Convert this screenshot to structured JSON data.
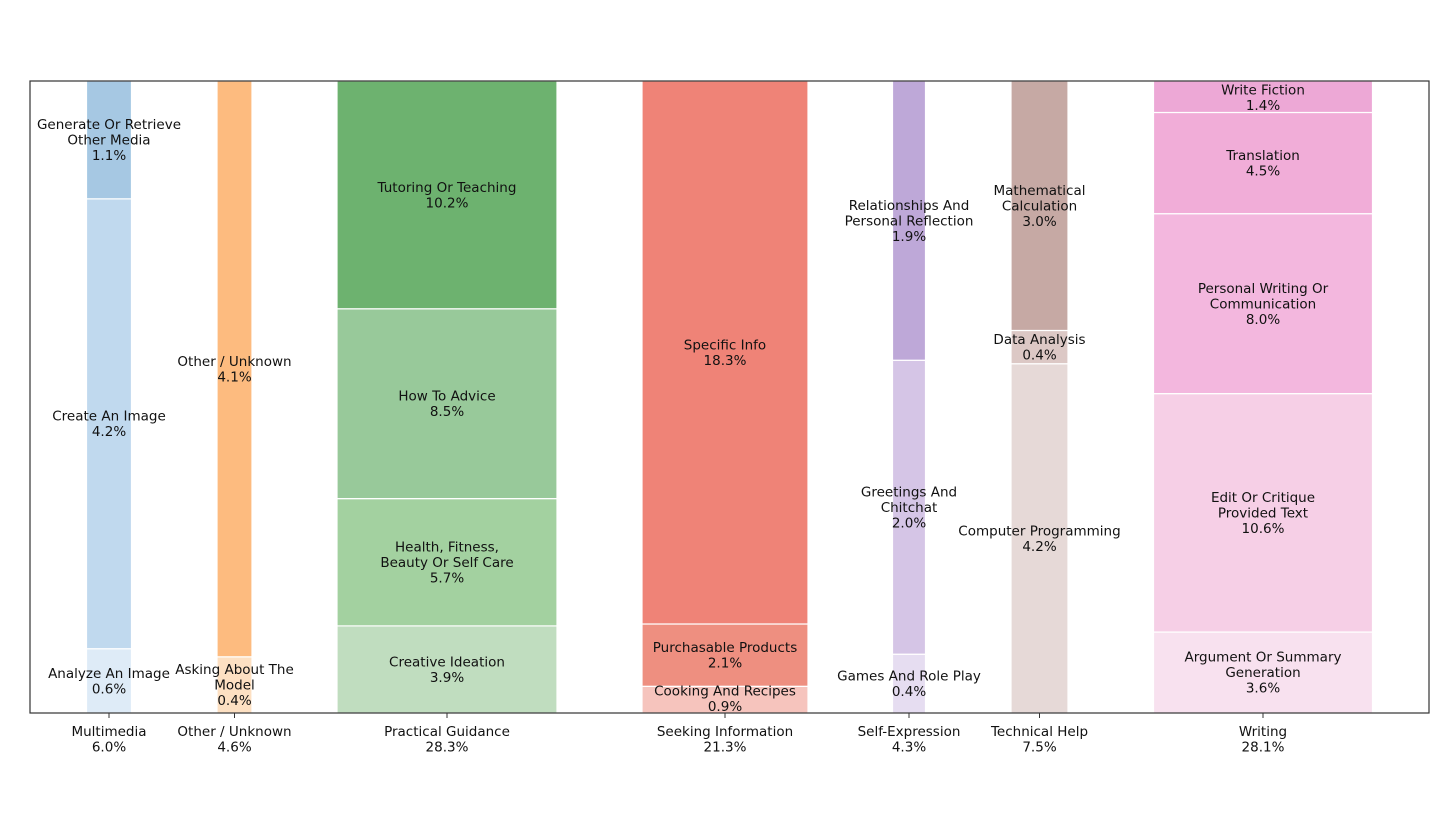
{
  "chart_data": {
    "type": "stacked_bar",
    "ylim": [
      0,
      1
    ],
    "grid": false,
    "legend": "none",
    "categories": [
      {
        "name": "Multimedia",
        "total": "6.0%",
        "color": "#9ecae1",
        "segments": [
          {
            "label": "Analyze An Image",
            "value": 0.6,
            "text": "0.6%",
            "color": "#deebf7"
          },
          {
            "label": "Create An Image",
            "value": 4.2,
            "text": "4.2%",
            "color": "#c0d9ee"
          },
          {
            "label": "Generate Or Retrieve Other Media",
            "value": 1.1,
            "text": "1.1%",
            "color": "#a6c8e3"
          }
        ]
      },
      {
        "name": "Other / Unknown",
        "total": "4.6%",
        "color": "#fdbb7f",
        "segments": [
          {
            "label": "Asking About The Model",
            "value": 0.4,
            "text": "0.4%",
            "color": "#fde0c2"
          },
          {
            "label": "Other / Unknown",
            "value": 4.1,
            "text": "4.1%",
            "color": "#fdbb7f"
          }
        ]
      },
      {
        "name": "Practical Guidance",
        "total": "28.3%",
        "color": "#74c476",
        "segments": [
          {
            "label": "Creative Ideation",
            "value": 3.9,
            "text": "3.9%",
            "color": "#c0ddbf"
          },
          {
            "label": "Health, Fitness, Beauty Or Self Care",
            "value": 5.7,
            "text": "5.7%",
            "color": "#a3d1a0"
          },
          {
            "label": "How To Advice",
            "value": 8.5,
            "text": "8.5%",
            "color": "#98c99a"
          },
          {
            "label": "Tutoring Or Teaching",
            "value": 10.2,
            "text": "10.2%",
            "color": "#6db26f"
          }
        ]
      },
      {
        "name": "Seeking Information",
        "total": "21.3%",
        "color": "#ef8377",
        "segments": [
          {
            "label": "Cooking And Recipes",
            "value": 0.9,
            "text": "0.9%",
            "color": "#f6c4bd"
          },
          {
            "label": "Purchasable Products",
            "value": 2.1,
            "text": "2.1%",
            "color": "#ee8f80"
          },
          {
            "label": "Specific Info",
            "value": 18.3,
            "text": "18.3%",
            "color": "#ef8377"
          }
        ]
      },
      {
        "name": "Self-Expression",
        "total": "4.3%",
        "color": "#bea8d8",
        "segments": [
          {
            "label": "Games And Role Play",
            "value": 0.4,
            "text": "0.4%",
            "color": "#e6ddf1"
          },
          {
            "label": "Greetings And Chitchat",
            "value": 2.0,
            "text": "2.0%",
            "color": "#d5c5e6"
          },
          {
            "label": "Relationships And Personal Reflection",
            "value": 1.9,
            "text": "1.9%",
            "color": "#bea8d8"
          }
        ]
      },
      {
        "name": "Technical Help",
        "total": "7.5%",
        "color": "#c6a9a4",
        "segments": [
          {
            "label": "Computer Programming",
            "value": 4.2,
            "text": "4.2%",
            "color": "#e6d9d7"
          },
          {
            "label": "Data Analysis",
            "value": 0.4,
            "text": "0.4%",
            "color": "#dcc8c5"
          },
          {
            "label": "Mathematical Calculation",
            "value": 3.0,
            "text": "3.0%",
            "color": "#c6a9a4"
          }
        ]
      },
      {
        "name": "Writing",
        "total": "28.1%",
        "color": "#f2a9d8",
        "segments": [
          {
            "label": "Argument Or Summary Generation",
            "value": 3.6,
            "text": "3.6%",
            "color": "#f8e1ef"
          },
          {
            "label": "Edit Or Critique Provided Text",
            "value": 10.6,
            "text": "10.6%",
            "color": "#f6cfe6"
          },
          {
            "label": "Personal Writing Or Communication",
            "value": 8.0,
            "text": "8.0%",
            "color": "#f3b7de"
          },
          {
            "label": "Translation",
            "value": 4.5,
            "text": "4.5%",
            "color": "#f1add8"
          },
          {
            "label": "Write Fiction",
            "value": 1.4,
            "text": "1.4%",
            "color": "#eda8d6"
          }
        ]
      }
    ]
  }
}
